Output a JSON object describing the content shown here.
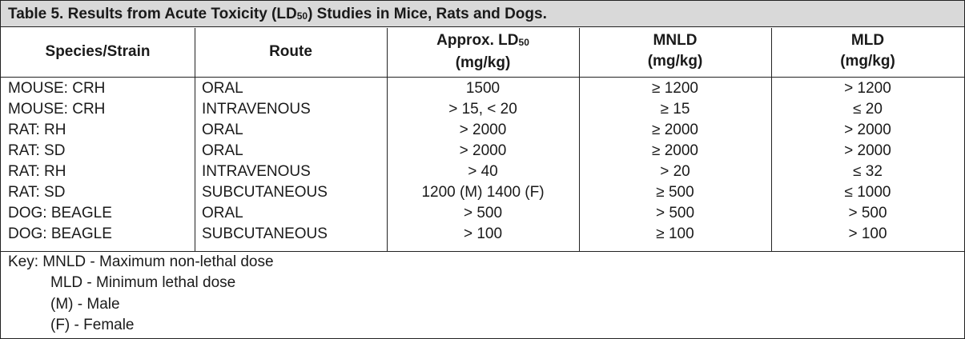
{
  "table": {
    "title": {
      "text": "Table 5. Results from Acute Toxicity (LD",
      "subscript": "50",
      "text_after": ") Studies in Mice, Rats and Dogs."
    },
    "headers": [
      {
        "text": "Species/Strain"
      },
      {
        "text": "Route"
      },
      {
        "text": "Approx. LD",
        "subscript": "50",
        "unit": "(mg/kg)"
      },
      {
        "text": "MNLD",
        "unit": "(mg/kg)"
      },
      {
        "text": "MLD",
        "unit": "(mg/kg)"
      }
    ],
    "rows": [
      [
        "MOUSE: CRH",
        "ORAL",
        "1500",
        "≥ 1200",
        "> 1200"
      ],
      [
        "MOUSE: CRH",
        "INTRAVENOUS",
        "> 15, < 20",
        "≥ 15",
        "≤ 20"
      ],
      [
        "RAT: RH",
        "ORAL",
        "> 2000",
        "≥ 2000",
        "> 2000"
      ],
      [
        "RAT: SD",
        "ORAL",
        "> 2000",
        "≥ 2000",
        "> 2000"
      ],
      [
        "RAT: RH",
        "INTRAVENOUS",
        "> 40",
        "> 20",
        "≤ 32"
      ],
      [
        "RAT: SD",
        "SUBCUTANEOUS",
        "1200 (M) 1400 (F)",
        "≥ 500",
        "≤ 1000"
      ],
      [
        "DOG: BEAGLE",
        "ORAL",
        "> 500",
        "> 500",
        "> 500"
      ],
      [
        "DOG: BEAGLE",
        "SUBCUTANEOUS",
        "> 100",
        "≥ 100",
        "> 100"
      ]
    ],
    "key": [
      "Key: MNLD - Maximum non-lethal dose",
      "MLD - Minimum lethal dose",
      "(M) - Male",
      "(F) - Female"
    ]
  }
}
